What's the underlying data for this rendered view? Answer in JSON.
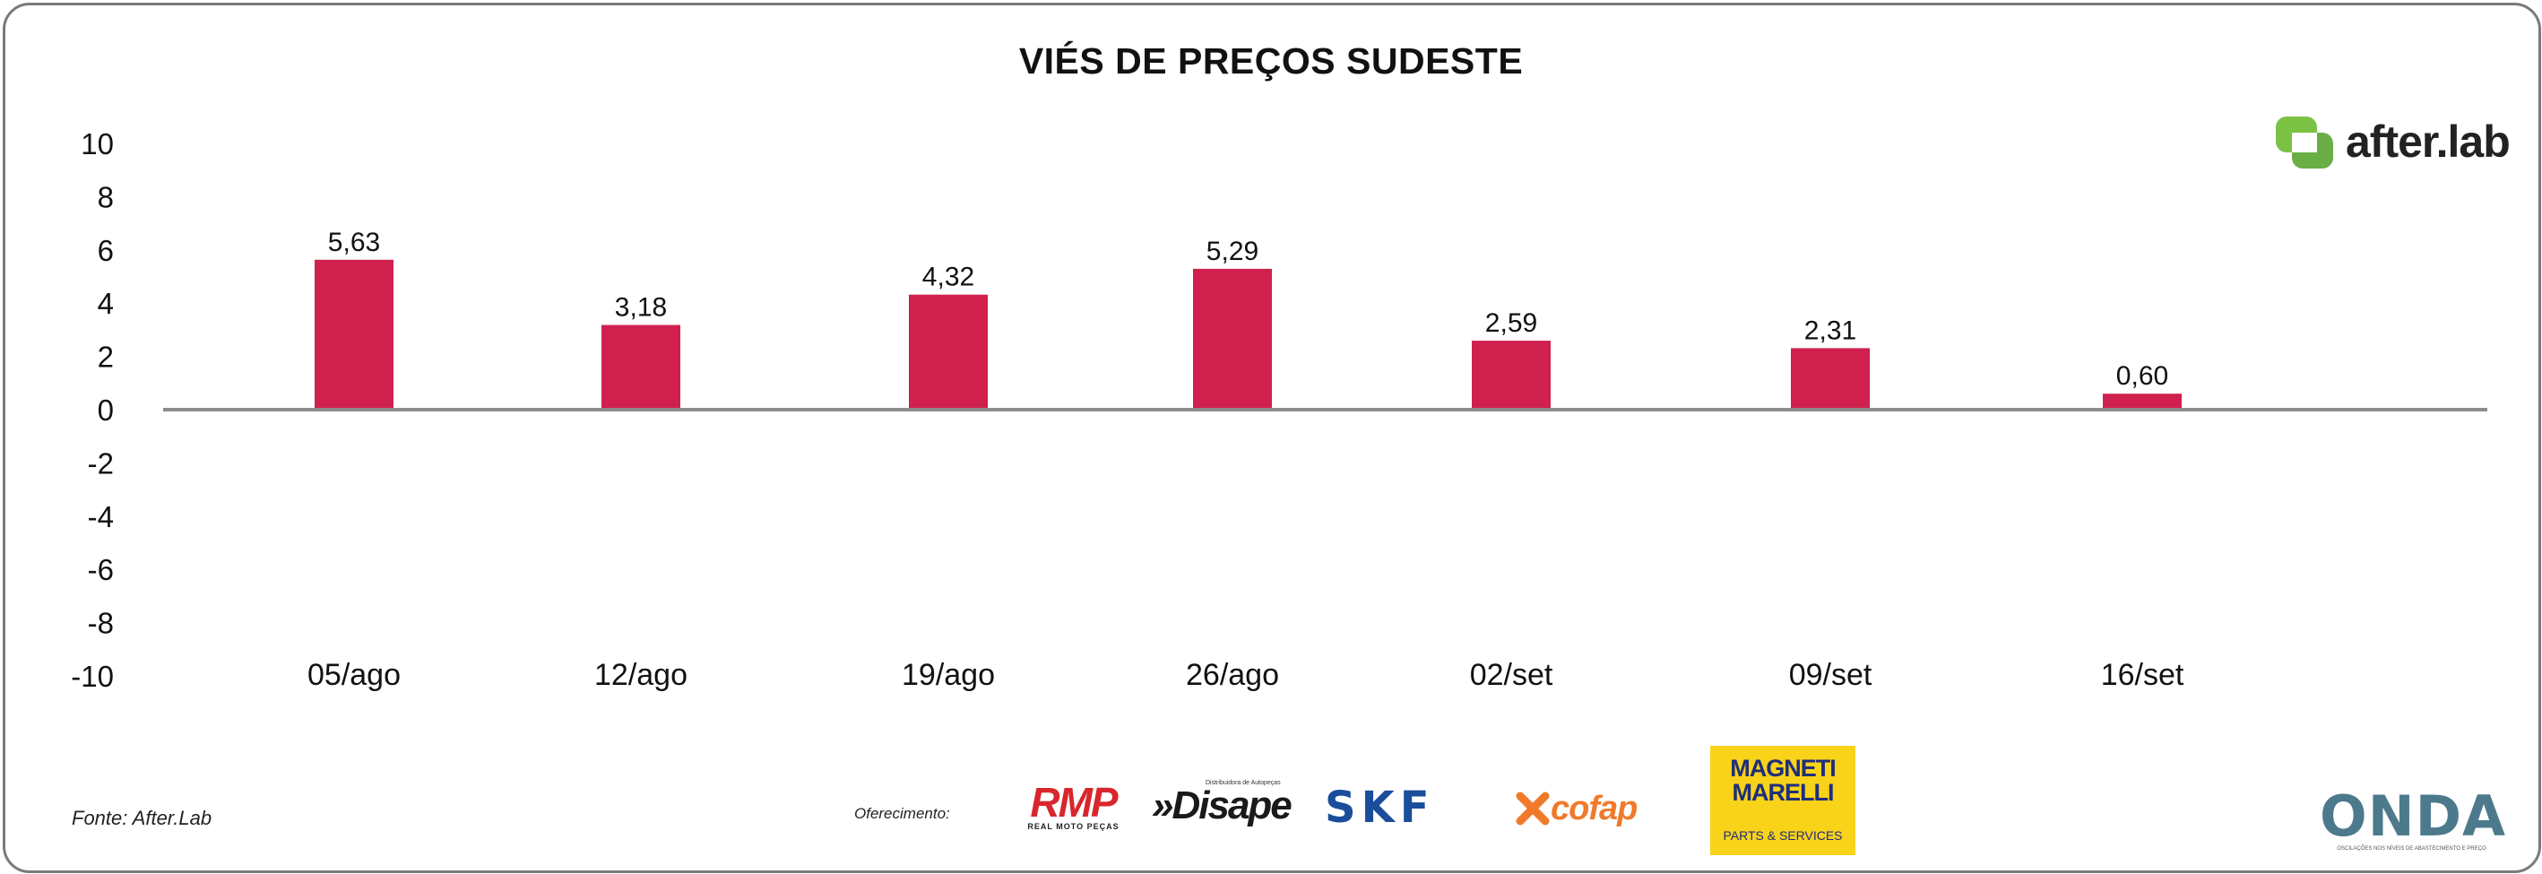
{
  "chart_data": {
    "type": "bar",
    "title": "VIÉS DE PREÇOS SUDESTE",
    "categories": [
      "05/ago",
      "12/ago",
      "19/ago",
      "26/ago",
      "02/set",
      "09/set",
      "16/set"
    ],
    "values": [
      5.63,
      3.18,
      4.32,
      5.29,
      2.59,
      2.31,
      0.6
    ],
    "value_labels": [
      "5,63",
      "3,18",
      "4,32",
      "5,29",
      "2,59",
      "2,31",
      "0,60"
    ],
    "ylim": [
      -10,
      10
    ],
    "yticks": [
      "10",
      "8",
      "6",
      "4",
      "2",
      "0",
      "-2",
      "-4",
      "-6",
      "-8",
      "-10"
    ],
    "ytick_values": [
      10,
      8,
      6,
      4,
      2,
      0,
      -2,
      -4,
      -6,
      -8,
      -10
    ],
    "xlabel": "",
    "ylabel": "",
    "grid": false,
    "bar_color": "#d0204e"
  },
  "brand": {
    "name": "after.lab",
    "accent": "#7bc143"
  },
  "footer": {
    "source": "Fonte: After.Lab",
    "offer_label": "Oferecimento:"
  },
  "sponsors": {
    "rmp": "RMP",
    "rmp_sub": "REAL MOTO PEÇAS",
    "disape": "»Disape",
    "disape_sub": "Distribuidora de Autopeças",
    "skf": "SKF",
    "cofap": "cofap",
    "magneti_line1": "MAGNETI",
    "magneti_line2": "MARELLI",
    "magneti_sub": "PARTS & SERVICES",
    "onda": "ONDA",
    "onda_sub": "OSCILAÇÕES NOS NÍVEIS DE ABASTECIMENTO E PREÇO"
  }
}
